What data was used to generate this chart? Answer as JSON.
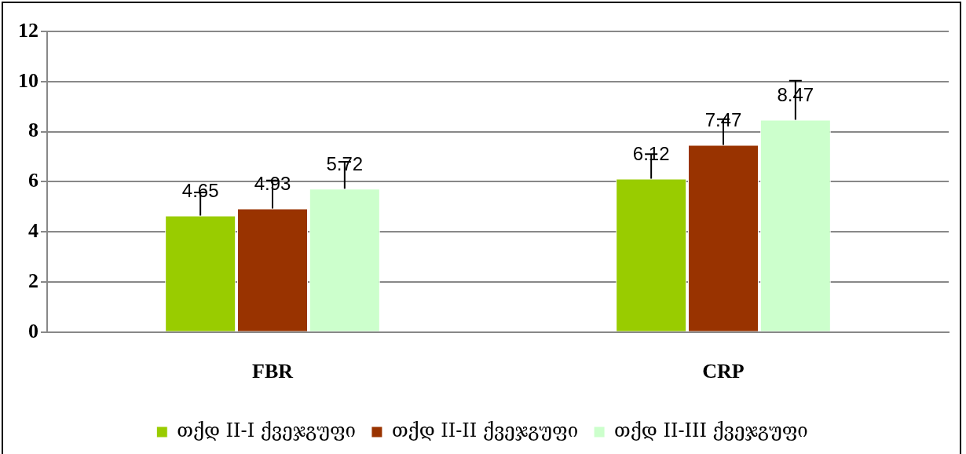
{
  "chart_data": {
    "type": "bar",
    "categories": [
      "FBR",
      "CRP"
    ],
    "series": [
      {
        "name": "თქდ II-I ქვეჯგუფი",
        "color": "#99cc00",
        "values": [
          4.65,
          6.12
        ],
        "errors": [
          [
            4.65,
            5.57
          ],
          [
            6.12,
            7.1
          ]
        ]
      },
      {
        "name": "თქდ II-II ქვეჯგუფი",
        "color": "#993300",
        "values": [
          4.93,
          7.47
        ],
        "errors": [
          [
            4.93,
            6.05
          ],
          [
            7.47,
            8.5
          ]
        ]
      },
      {
        "name": "თქდ II-III ქვეჯგუფი",
        "color": "#ccffcc",
        "values": [
          5.72,
          8.47
        ],
        "errors": [
          [
            5.72,
            6.8
          ],
          [
            8.47,
            10.03
          ]
        ]
      }
    ],
    "ylim": [
      0,
      12
    ],
    "yticks": [
      0,
      2,
      4,
      6,
      8,
      10,
      12
    ],
    "grid": "y",
    "legend": "bottom",
    "data_labels": true
  }
}
